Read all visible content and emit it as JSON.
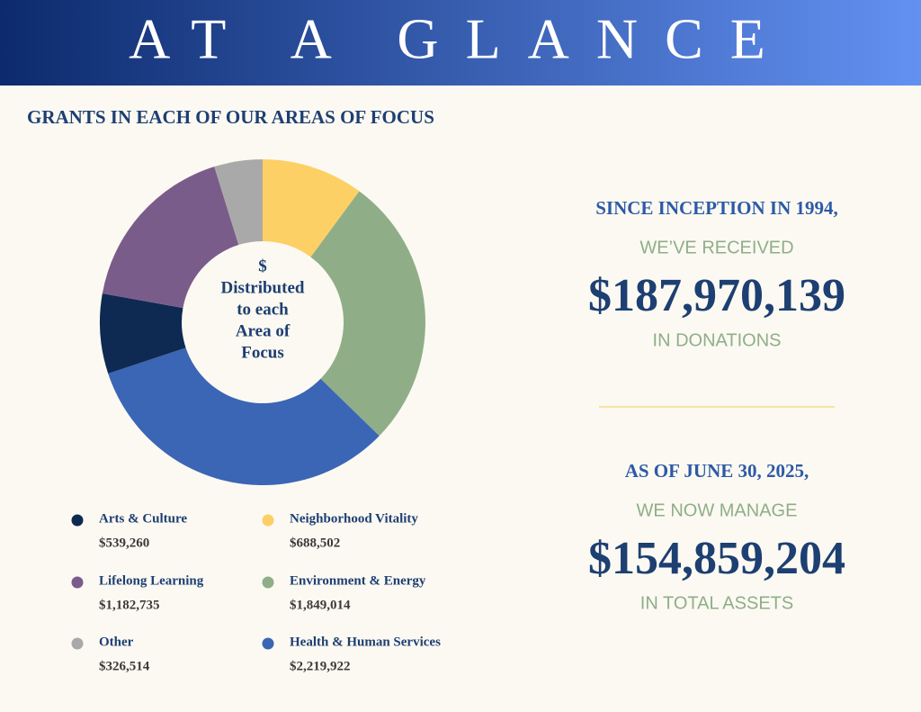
{
  "header": {
    "title": "AT A GLANCE"
  },
  "chart_data": {
    "type": "pie",
    "title": "GRANTS IN EACH OF OUR AREAS OF FOCUS",
    "center_label": [
      "$",
      "Distributed",
      "to each",
      "Area of",
      "Focus"
    ],
    "categories": [
      "Neighborhood Vitality",
      "Environment & Energy",
      "Health & Human Services",
      "Arts & Culture",
      "Lifelong Learning",
      "Other"
    ],
    "values": [
      688502,
      1849014,
      2219922,
      539260,
      1182735,
      326514
    ],
    "value_labels": [
      "$688,502",
      "$1,849,014",
      "$2,219,922",
      "$539,260",
      "$1,182,735",
      "$326,514"
    ],
    "colors": [
      "#fdd065",
      "#8fae88",
      "#3b65b5",
      "#0e2a52",
      "#7a5c8a",
      "#a9a9a9"
    ]
  },
  "stats": [
    {
      "lead": "SINCE INCEPTION IN 1994,",
      "pre": "WE’VE RECEIVED",
      "amount": "$187,970,139",
      "post": "IN DONATIONS"
    },
    {
      "lead": "AS OF JUNE 30, 2025,",
      "pre": "WE NOW MANAGE",
      "amount": "$154,859,204",
      "post": "IN TOTAL ASSETS"
    }
  ]
}
